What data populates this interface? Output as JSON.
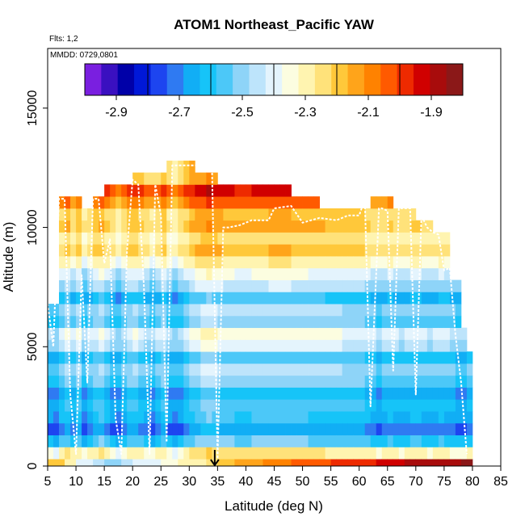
{
  "chart_data": {
    "type": "heatmap",
    "title": "ATOM1 Northeast_Pacific YAW",
    "flights_label": "Flts: 1,2",
    "dates_label": "MMDD: 0729,0801",
    "xlabel": "Latitude (deg N)",
    "ylabel": "Altitude (m)",
    "xlim": [
      5,
      85
    ],
    "ylim": [
      0,
      17500
    ],
    "x_ticks": [
      "5",
      "10",
      "15",
      "20",
      "25",
      "30",
      "35",
      "40",
      "45",
      "50",
      "55",
      "60",
      "65",
      "70",
      "75",
      "80",
      "85"
    ],
    "y_ticks": [
      {
        "value": 0,
        "label": "0"
      },
      {
        "value": 5000,
        "label": "5000"
      },
      {
        "value": 10000,
        "label": "10000"
      },
      {
        "value": 15000,
        "label": "15000"
      }
    ],
    "colorbar": {
      "min": -3.0,
      "max": -1.8,
      "tick_values": [
        -2.9,
        -2.7,
        -2.5,
        -2.3,
        -2.1,
        -1.9
      ],
      "tick_labels": [
        "-2.9",
        "-2.7",
        "-2.5",
        "-2.3",
        "-2.1",
        "-1.9"
      ],
      "colors": [
        "#7a1fe0",
        "#3a10c0",
        "#0000a8",
        "#0018d8",
        "#1d45f0",
        "#2f7af2",
        "#11aef5",
        "#16c4f8",
        "#4cc8f8",
        "#8ed4f8",
        "#bde4fb",
        "#e4f4fd",
        "#fcfde0",
        "#fff4b0",
        "#ffe27a",
        "#ffc83a",
        "#ffa41a",
        "#ff8200",
        "#ff5a00",
        "#ee2a00",
        "#d00000",
        "#a80c0c",
        "#8b1818"
      ],
      "separator_values": [
        -2.8,
        -2.6,
        -2.4,
        -2.2,
        -2.0
      ]
    },
    "altitude_band_edges": [
      0,
      300,
      800,
      1300,
      1800,
      2300,
      2800,
      3300,
      3800,
      4300,
      4800,
      5300,
      5800,
      6300,
      6800,
      7300,
      7800,
      8300,
      8800,
      9300,
      9800,
      10300,
      10800,
      11300,
      11800,
      12300,
      12800
    ],
    "band_values": [
      -2.25,
      -2.3,
      -2.58,
      -2.7,
      -2.63,
      -2.6,
      -2.65,
      -2.55,
      -2.5,
      -2.6,
      -2.45,
      -2.4,
      -2.55,
      -2.5,
      -2.62,
      -2.48,
      -2.42,
      -2.32,
      -2.22,
      -2.28,
      -2.2,
      -2.22,
      -2.1,
      -2.0,
      -2.2,
      -2.2
    ],
    "columns": [
      {
        "lat": 5,
        "bottom": 0,
        "top": 7000,
        "shift": -0.05
      },
      {
        "lat": 6,
        "bottom": 0,
        "top": 7000,
        "shift": -0.08
      },
      {
        "lat": 7,
        "bottom": 0,
        "top": 11500,
        "shift": 0.0
      },
      {
        "lat": 8,
        "bottom": 0,
        "top": 11500,
        "shift": 0.04
      },
      {
        "lat": 9,
        "bottom": 0,
        "top": 11500,
        "shift": -0.02
      },
      {
        "lat": 10,
        "bottom": 0,
        "top": 11500,
        "shift": 0.03
      },
      {
        "lat": 11,
        "bottom": 0,
        "top": 11000,
        "shift": -0.06
      },
      {
        "lat": 12,
        "bottom": 0,
        "top": 11000,
        "shift": -0.02
      },
      {
        "lat": 13,
        "bottom": 0,
        "top": 11500,
        "shift": 0.02
      },
      {
        "lat": 14,
        "bottom": 0,
        "top": 11500,
        "shift": 0.05
      },
      {
        "lat": 15,
        "bottom": 0,
        "top": 12000,
        "shift": 0.0
      },
      {
        "lat": 16,
        "bottom": 0,
        "top": 12000,
        "shift": -0.04
      },
      {
        "lat": 17,
        "bottom": 0,
        "top": 12000,
        "shift": -0.08
      },
      {
        "lat": 18,
        "bottom": 0,
        "top": 12000,
        "shift": -0.03
      },
      {
        "lat": 19,
        "bottom": 0,
        "top": 12000,
        "shift": 0.02
      },
      {
        "lat": 20,
        "bottom": 0,
        "top": 12500,
        "shift": 0.03
      },
      {
        "lat": 21,
        "bottom": 0,
        "top": 12500,
        "shift": 0.0
      },
      {
        "lat": 22,
        "bottom": 0,
        "top": 12500,
        "shift": -0.03
      },
      {
        "lat": 23,
        "bottom": 0,
        "top": 12500,
        "shift": -0.06
      },
      {
        "lat": 24,
        "bottom": 0,
        "top": 12500,
        "shift": -0.02
      },
      {
        "lat": 25,
        "bottom": 0,
        "top": 12500,
        "shift": 0.02
      },
      {
        "lat": 26,
        "bottom": 0,
        "top": 13000,
        "shift": -0.05
      },
      {
        "lat": 27,
        "bottom": 0,
        "top": 13000,
        "shift": -0.08
      },
      {
        "lat": 28,
        "bottom": 0,
        "top": 13000,
        "shift": -0.04
      },
      {
        "lat": 29,
        "bottom": 0,
        "top": 13000,
        "shift": 0.0
      },
      {
        "lat": 30,
        "bottom": 0,
        "top": 13000,
        "shift": 0.04
      },
      {
        "lat": 31,
        "bottom": 0,
        "top": 12500,
        "shift": 0.06
      },
      {
        "lat": 32,
        "bottom": 0,
        "top": 12500,
        "shift": 0.08
      },
      {
        "lat": 33,
        "bottom": 0,
        "top": 12500,
        "shift": 0.1
      },
      {
        "lat": 34,
        "bottom": 0,
        "top": 12500,
        "shift": 0.08
      },
      {
        "lat": 35,
        "bottom": 0,
        "top": 12000,
        "shift": 0.06
      },
      {
        "lat": 36,
        "bottom": 0,
        "top": 12000,
        "shift": 0.05
      },
      {
        "lat": 37,
        "bottom": 0,
        "top": 12000,
        "shift": 0.05
      },
      {
        "lat": 38,
        "bottom": 0,
        "top": 12000,
        "shift": 0.04
      },
      {
        "lat": 39,
        "bottom": 0,
        "top": 12000,
        "shift": 0.04
      },
      {
        "lat": 40,
        "bottom": 0,
        "top": 12000,
        "shift": 0.04
      },
      {
        "lat": 41,
        "bottom": 0,
        "top": 12000,
        "shift": 0.05
      },
      {
        "lat": 42,
        "bottom": 0,
        "top": 12000,
        "shift": 0.05
      },
      {
        "lat": 43,
        "bottom": 0,
        "top": 12000,
        "shift": 0.05
      },
      {
        "lat": 44,
        "bottom": 0,
        "top": 12000,
        "shift": 0.06
      },
      {
        "lat": 45,
        "bottom": 0,
        "top": 12000,
        "shift": 0.06
      },
      {
        "lat": 46,
        "bottom": 0,
        "top": 12000,
        "shift": 0.06
      },
      {
        "lat": 47,
        "bottom": 0,
        "top": 12000,
        "shift": 0.06
      },
      {
        "lat": 48,
        "bottom": 0,
        "top": 11500,
        "shift": 0.05
      },
      {
        "lat": 49,
        "bottom": 0,
        "top": 11500,
        "shift": 0.05
      },
      {
        "lat": 50,
        "bottom": 0,
        "top": 11500,
        "shift": 0.05
      },
      {
        "lat": 51,
        "bottom": 0,
        "top": 11500,
        "shift": 0.04
      },
      {
        "lat": 52,
        "bottom": 0,
        "top": 11500,
        "shift": 0.04
      },
      {
        "lat": 53,
        "bottom": 0,
        "top": 11000,
        "shift": 0.04
      },
      {
        "lat": 54,
        "bottom": 0,
        "top": 11000,
        "shift": 0.03
      },
      {
        "lat": 55,
        "bottom": 0,
        "top": 11000,
        "shift": 0.03
      },
      {
        "lat": 56,
        "bottom": 0,
        "top": 11000,
        "shift": 0.03
      },
      {
        "lat": 57,
        "bottom": 0,
        "top": 11000,
        "shift": 0.02
      },
      {
        "lat": 58,
        "bottom": 0,
        "top": 11000,
        "shift": 0.02
      },
      {
        "lat": 59,
        "bottom": 0,
        "top": 11000,
        "shift": 0.02
      },
      {
        "lat": 60,
        "bottom": 0,
        "top": 11000,
        "shift": 0.02
      },
      {
        "lat": 61,
        "bottom": 0,
        "top": 11000,
        "shift": 0.0
      },
      {
        "lat": 62,
        "bottom": 0,
        "top": 11500,
        "shift": -0.02
      },
      {
        "lat": 63,
        "bottom": 0,
        "top": 11500,
        "shift": -0.04
      },
      {
        "lat": 64,
        "bottom": 0,
        "top": 11500,
        "shift": -0.02
      },
      {
        "lat": 65,
        "bottom": 0,
        "top": 11500,
        "shift": 0.0
      },
      {
        "lat": 66,
        "bottom": 0,
        "top": 11000,
        "shift": -0.02
      },
      {
        "lat": 67,
        "bottom": 0,
        "top": 11000,
        "shift": -0.03
      },
      {
        "lat": 68,
        "bottom": 0,
        "top": 11000,
        "shift": -0.02
      },
      {
        "lat": 69,
        "bottom": 0,
        "top": 11000,
        "shift": 0.0
      },
      {
        "lat": 70,
        "bottom": 0,
        "top": 10500,
        "shift": 0.0
      },
      {
        "lat": 71,
        "bottom": 0,
        "top": 10500,
        "shift": -0.02
      },
      {
        "lat": 72,
        "bottom": 0,
        "top": 10500,
        "shift": -0.03
      },
      {
        "lat": 73,
        "bottom": 0,
        "top": 10000,
        "shift": -0.02
      },
      {
        "lat": 74,
        "bottom": 0,
        "top": 10000,
        "shift": 0.0
      },
      {
        "lat": 75,
        "bottom": 0,
        "top": 10000,
        "shift": -0.01
      },
      {
        "lat": 76,
        "bottom": 0,
        "top": 8000,
        "shift": -0.03
      },
      {
        "lat": 77,
        "bottom": 0,
        "top": 8000,
        "shift": -0.05
      },
      {
        "lat": 78,
        "bottom": 0,
        "top": 6000,
        "shift": -0.04
      },
      {
        "lat": 79,
        "bottom": 0,
        "top": 5000,
        "shift": -0.02
      }
    ],
    "surface_row_values": [
      -2.2,
      -2.3,
      -2.4,
      -2.45,
      -2.5,
      -2.45,
      -2.4,
      -2.38,
      -2.35,
      -2.32,
      -2.28,
      -2.24,
      -2.2,
      -2.16,
      -2.12,
      -2.1,
      -2.08,
      -2.06,
      -2.04,
      -2.02,
      -2.0,
      -1.98,
      -1.96,
      -1.94,
      -1.92,
      -1.9,
      -1.88,
      -1.87,
      -1.86,
      -1.85
    ],
    "flight_track": [
      [
        5,
        6800
      ],
      [
        6,
        5000
      ],
      [
        7,
        11200
      ],
      [
        8,
        11200
      ],
      [
        9,
        3000
      ],
      [
        10,
        500
      ],
      [
        11,
        8000
      ],
      [
        12,
        3500
      ],
      [
        13,
        11200
      ],
      [
        14,
        11200
      ],
      [
        15,
        8500
      ],
      [
        16,
        9500
      ],
      [
        17,
        2000
      ],
      [
        18,
        500
      ],
      [
        19,
        9000
      ],
      [
        20,
        12000
      ],
      [
        21,
        11800
      ],
      [
        22,
        7500
      ],
      [
        23,
        500
      ],
      [
        24,
        11800
      ],
      [
        25,
        10500
      ],
      [
        26,
        1000
      ],
      [
        27,
        12600
      ],
      [
        28,
        12600
      ],
      [
        30,
        12600
      ],
      [
        32,
        12600
      ],
      [
        34,
        12600
      ],
      [
        35,
        300
      ],
      [
        36,
        10000
      ],
      [
        37,
        10000
      ],
      [
        39,
        10100
      ],
      [
        41,
        10300
      ],
      [
        44,
        10300
      ],
      [
        45,
        10800
      ],
      [
        48,
        10900
      ],
      [
        50,
        10200
      ],
      [
        53,
        10400
      ],
      [
        56,
        10300
      ],
      [
        58,
        10500
      ],
      [
        60,
        10500
      ],
      [
        61,
        11200
      ],
      [
        62,
        2500
      ],
      [
        63,
        8000
      ],
      [
        63.5,
        10800
      ],
      [
        64,
        10800
      ],
      [
        65,
        10700
      ],
      [
        66,
        4000
      ],
      [
        67,
        10800
      ],
      [
        69,
        10800
      ],
      [
        70,
        3000
      ],
      [
        71,
        10500
      ],
      [
        72,
        10000
      ],
      [
        73,
        9800
      ],
      [
        74,
        9700
      ],
      [
        75,
        8200
      ],
      [
        76,
        8300
      ],
      [
        77,
        5500
      ],
      [
        78,
        3500
      ],
      [
        79,
        500
      ]
    ],
    "marker": {
      "lat": 34.5,
      "altitude": 0
    }
  }
}
